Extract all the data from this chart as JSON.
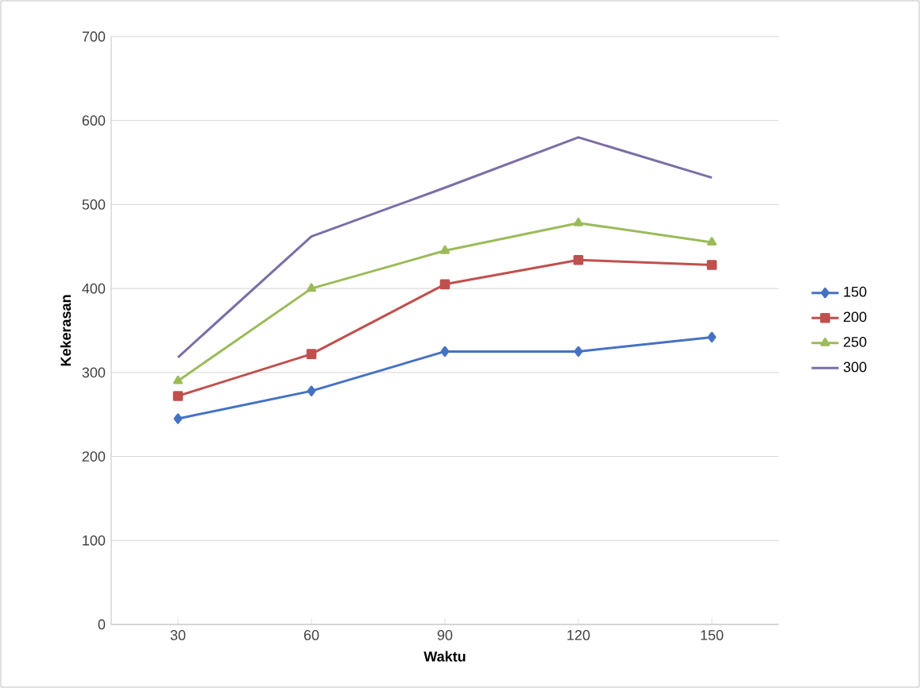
{
  "chart_data": {
    "type": "line",
    "xlabel": "Waktu",
    "ylabel": "Kekerasan",
    "categories": [
      "30",
      "60",
      "90",
      "120",
      "150"
    ],
    "series": [
      {
        "name": "150",
        "color": "#4472c4",
        "marker": "diamond",
        "values": [
          245,
          278,
          325,
          325,
          342
        ]
      },
      {
        "name": "200",
        "color": "#c0504d",
        "marker": "square",
        "values": [
          272,
          322,
          405,
          434,
          428
        ]
      },
      {
        "name": "250",
        "color": "#9bbb59",
        "marker": "triangle",
        "values": [
          290,
          400,
          445,
          478,
          455
        ]
      },
      {
        "name": "300",
        "color": "#7b6ea6",
        "marker": "none",
        "values": [
          318,
          462,
          520,
          580,
          532
        ]
      }
    ],
    "ylim": [
      0,
      700
    ],
    "yticks": [
      0,
      100,
      200,
      300,
      400,
      500,
      600,
      700
    ],
    "grid": "y",
    "legend": "right"
  }
}
